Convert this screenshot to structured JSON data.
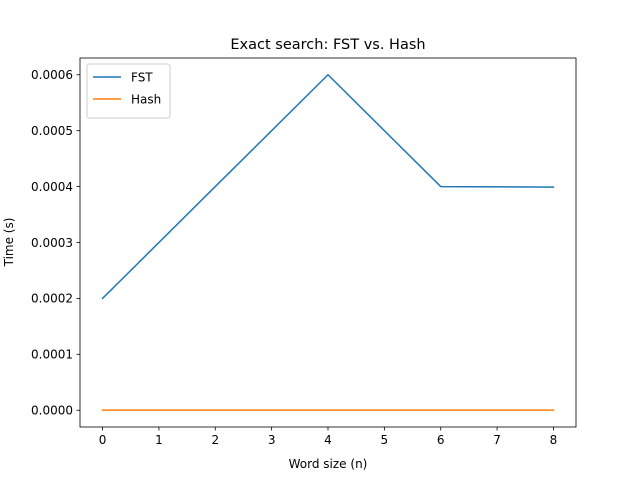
{
  "chart_data": {
    "type": "line",
    "title": "Exact search: FST vs. Hash",
    "xlabel": "Word size (n)",
    "ylabel": "Time (s)",
    "xlim": [
      -0.4,
      8.4
    ],
    "ylim": [
      -3e-05,
      0.00063
    ],
    "xticks": [
      0,
      1,
      2,
      3,
      4,
      5,
      6,
      7,
      8
    ],
    "xtick_labels": [
      "0",
      "1",
      "2",
      "3",
      "4",
      "5",
      "6",
      "7",
      "8"
    ],
    "yticks": [
      0,
      0.0001,
      0.0002,
      0.0003,
      0.0004,
      0.0005,
      0.0006
    ],
    "ytick_labels": [
      "0.0000",
      "0.0001",
      "0.0002",
      "0.0003",
      "0.0004",
      "0.0005",
      "0.0006"
    ],
    "grid": false,
    "legend_position": "top-left",
    "x": [
      0,
      2,
      4,
      6,
      8
    ],
    "series": [
      {
        "name": "FST",
        "color": "#1f77b4",
        "values": [
          0.0002,
          0.0004,
          0.0006,
          0.0004,
          0.000399
        ]
      },
      {
        "name": "Hash",
        "color": "#ff7f0e",
        "values": [
          1e-07,
          1e-07,
          1e-07,
          1e-07,
          1e-07
        ]
      }
    ]
  }
}
